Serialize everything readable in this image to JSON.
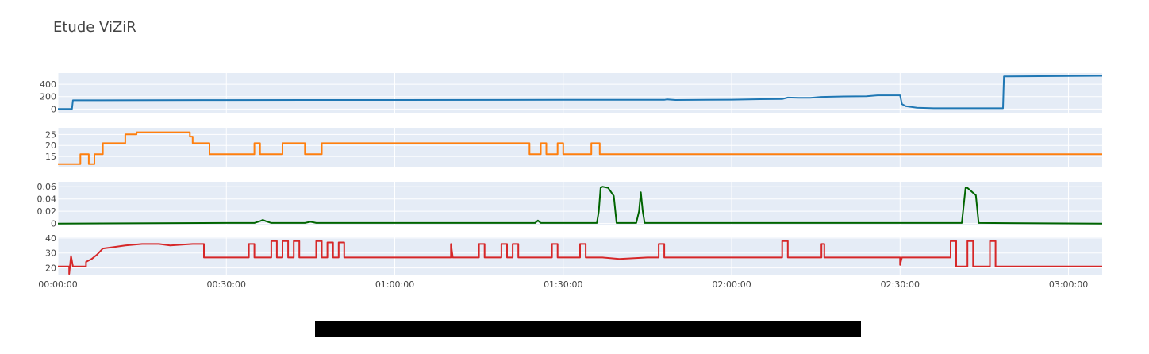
{
  "chart_data": {
    "type": "line",
    "title": "Etude ViZiR",
    "x_unit": "hh:mm:ss",
    "x_range": [
      "00:00:00",
      "03:06:00"
    ],
    "x_ticks": [
      "00:00:00",
      "00:30:00",
      "01:00:00",
      "01:30:00",
      "02:00:00",
      "02:30:00",
      "03:00:00"
    ],
    "grid": true,
    "legend": "none",
    "subplots": [
      {
        "color": "#1f77b4",
        "ylim": [
          -60,
          580
        ],
        "y_ticks": [
          0,
          200,
          400
        ],
        "points": [
          [
            "00:00:00",
            0
          ],
          [
            "00:02:30",
            0
          ],
          [
            "00:02:40",
            140
          ],
          [
            "00:30:00",
            143
          ],
          [
            "01:00:00",
            145
          ],
          [
            "01:30:00",
            147
          ],
          [
            "01:48:00",
            148
          ],
          [
            "01:48:30",
            155
          ],
          [
            "01:50:00",
            145
          ],
          [
            "02:00:00",
            150
          ],
          [
            "02:05:00",
            158
          ],
          [
            "02:09:00",
            160
          ],
          [
            "02:10:00",
            185
          ],
          [
            "02:12:00",
            180
          ],
          [
            "02:14:00",
            180
          ],
          [
            "02:16:00",
            195
          ],
          [
            "02:20:00",
            202
          ],
          [
            "02:24:00",
            205
          ],
          [
            "02:26:00",
            220
          ],
          [
            "02:30:00",
            220
          ],
          [
            "02:30:20",
            80
          ],
          [
            "02:31:00",
            45
          ],
          [
            "02:33:00",
            20
          ],
          [
            "02:36:00",
            12
          ],
          [
            "02:45:00",
            12
          ],
          [
            "02:48:20",
            12
          ],
          [
            "02:48:30",
            525
          ],
          [
            "03:06:00",
            535
          ]
        ]
      },
      {
        "color": "#ff7f0e",
        "ylim": [
          10,
          28
        ],
        "y_ticks": [
          15,
          20,
          25
        ],
        "points": [
          [
            "00:00:00",
            11.5
          ],
          [
            "00:04:00",
            11.5
          ],
          [
            "00:04:00",
            16
          ],
          [
            "00:05:30",
            16
          ],
          [
            "00:05:30",
            11.5
          ],
          [
            "00:06:30",
            11.5
          ],
          [
            "00:06:30",
            16
          ],
          [
            "00:08:00",
            16
          ],
          [
            "00:08:00",
            21
          ],
          [
            "00:12:00",
            21
          ],
          [
            "00:12:00",
            25
          ],
          [
            "00:14:00",
            25
          ],
          [
            "00:14:00",
            26
          ],
          [
            "00:23:30",
            26
          ],
          [
            "00:23:30",
            24
          ],
          [
            "00:24:00",
            24
          ],
          [
            "00:24:00",
            21
          ],
          [
            "00:27:00",
            21
          ],
          [
            "00:27:00",
            16
          ],
          [
            "00:35:00",
            16
          ],
          [
            "00:35:00",
            21
          ],
          [
            "00:36:00",
            21
          ],
          [
            "00:36:00",
            16
          ],
          [
            "00:40:00",
            16
          ],
          [
            "00:40:00",
            21
          ],
          [
            "00:44:00",
            21
          ],
          [
            "00:44:00",
            16
          ],
          [
            "00:47:00",
            16
          ],
          [
            "00:47:00",
            21
          ],
          [
            "01:24:00",
            21
          ],
          [
            "01:24:00",
            16
          ],
          [
            "01:26:00",
            16
          ],
          [
            "01:26:00",
            21
          ],
          [
            "01:27:00",
            21
          ],
          [
            "01:27:00",
            16
          ],
          [
            "01:29:00",
            16
          ],
          [
            "01:29:00",
            21
          ],
          [
            "01:30:00",
            21
          ],
          [
            "01:30:00",
            16
          ],
          [
            "01:35:00",
            16
          ],
          [
            "01:35:00",
            21
          ],
          [
            "01:36:30",
            21
          ],
          [
            "01:36:30",
            16
          ],
          [
            "03:06:00",
            16
          ]
        ]
      },
      {
        "color": "#006400",
        "ylim": [
          -0.003,
          0.068
        ],
        "y_ticks": [
          0,
          0.02,
          0.04,
          0.06
        ],
        "points": [
          [
            "00:00:00",
            0
          ],
          [
            "00:30:00",
            0.001
          ],
          [
            "00:35:00",
            0.001
          ],
          [
            "00:36:00",
            0.004
          ],
          [
            "00:36:30",
            0.006
          ],
          [
            "00:37:00",
            0.004
          ],
          [
            "00:38:00",
            0.001
          ],
          [
            "00:44:00",
            0.001
          ],
          [
            "00:45:00",
            0.003
          ],
          [
            "00:46:00",
            0.001
          ],
          [
            "01:00:00",
            0.001
          ],
          [
            "01:25:00",
            0.001
          ],
          [
            "01:25:30",
            0.005
          ],
          [
            "01:26:00",
            0.001
          ],
          [
            "01:36:00",
            0.001
          ],
          [
            "01:36:20",
            0.02
          ],
          [
            "01:36:40",
            0.058
          ],
          [
            "01:37:00",
            0.06
          ],
          [
            "01:38:00",
            0.058
          ],
          [
            "01:39:00",
            0.045
          ],
          [
            "01:39:30",
            0.001
          ],
          [
            "01:43:00",
            0.001
          ],
          [
            "01:43:30",
            0.02
          ],
          [
            "01:43:50",
            0.051
          ],
          [
            "01:44:10",
            0.02
          ],
          [
            "01:44:30",
            0.001
          ],
          [
            "02:40:00",
            0.001
          ],
          [
            "02:41:00",
            0.001
          ],
          [
            "02:41:20",
            0.03
          ],
          [
            "02:41:40",
            0.058
          ],
          [
            "02:42:00",
            0.058
          ],
          [
            "02:43:30",
            0.046
          ],
          [
            "02:44:00",
            0.001
          ],
          [
            "03:06:00",
            0
          ]
        ]
      },
      {
        "color": "#d62728",
        "ylim": [
          15,
          41
        ],
        "y_ticks": [
          20,
          30,
          40
        ],
        "points": [
          [
            "00:00:00",
            21
          ],
          [
            "00:02:00",
            21
          ],
          [
            "00:02:00",
            16
          ],
          [
            "00:02:20",
            28
          ],
          [
            "00:02:40",
            21
          ],
          [
            "00:05:00",
            21
          ],
          [
            "00:05:00",
            24
          ],
          [
            "00:06:00",
            26
          ],
          [
            "00:07:00",
            29
          ],
          [
            "00:08:00",
            33
          ],
          [
            "00:10:00",
            34
          ],
          [
            "00:12:00",
            35
          ],
          [
            "00:15:00",
            36
          ],
          [
            "00:18:00",
            36
          ],
          [
            "00:20:00",
            35
          ],
          [
            "00:24:00",
            36
          ],
          [
            "00:26:00",
            36
          ],
          [
            "00:26:00",
            27
          ],
          [
            "00:34:00",
            27
          ],
          [
            "00:34:00",
            36
          ],
          [
            "00:35:00",
            36
          ],
          [
            "00:35:00",
            27
          ],
          [
            "00:38:00",
            27
          ],
          [
            "00:38:00",
            38
          ],
          [
            "00:39:00",
            38
          ],
          [
            "00:39:00",
            27
          ],
          [
            "00:40:00",
            27
          ],
          [
            "00:40:00",
            38
          ],
          [
            "00:41:00",
            38
          ],
          [
            "00:41:00",
            27
          ],
          [
            "00:42:00",
            27
          ],
          [
            "00:42:00",
            38
          ],
          [
            "00:43:00",
            38
          ],
          [
            "00:43:00",
            27
          ],
          [
            "00:46:00",
            27
          ],
          [
            "00:46:00",
            38
          ],
          [
            "00:47:00",
            38
          ],
          [
            "00:47:00",
            27
          ],
          [
            "00:48:00",
            27
          ],
          [
            "00:48:00",
            37
          ],
          [
            "00:49:00",
            37
          ],
          [
            "00:49:00",
            27
          ],
          [
            "00:50:00",
            27
          ],
          [
            "00:50:00",
            37
          ],
          [
            "00:51:00",
            37
          ],
          [
            "00:51:00",
            27
          ],
          [
            "01:10:00",
            27
          ],
          [
            "01:10:00",
            36
          ],
          [
            "01:10:20",
            27
          ],
          [
            "01:15:00",
            27
          ],
          [
            "01:15:00",
            36
          ],
          [
            "01:16:00",
            36
          ],
          [
            "01:16:00",
            27
          ],
          [
            "01:19:00",
            27
          ],
          [
            "01:19:00",
            36
          ],
          [
            "01:20:00",
            36
          ],
          [
            "01:20:00",
            27
          ],
          [
            "01:21:00",
            27
          ],
          [
            "01:21:00",
            36
          ],
          [
            "01:22:00",
            36
          ],
          [
            "01:22:00",
            27
          ],
          [
            "01:28:00",
            27
          ],
          [
            "01:28:00",
            36
          ],
          [
            "01:29:00",
            36
          ],
          [
            "01:29:00",
            27
          ],
          [
            "01:33:00",
            27
          ],
          [
            "01:33:00",
            36
          ],
          [
            "01:34:00",
            36
          ],
          [
            "01:34:00",
            27
          ],
          [
            "01:37:00",
            27
          ],
          [
            "01:40:00",
            26
          ],
          [
            "01:45:00",
            27
          ],
          [
            "01:47:00",
            27
          ],
          [
            "01:47:00",
            36
          ],
          [
            "01:48:00",
            36
          ],
          [
            "01:48:00",
            27
          ],
          [
            "02:09:00",
            27
          ],
          [
            "02:09:00",
            38
          ],
          [
            "02:10:00",
            38
          ],
          [
            "02:10:00",
            27
          ],
          [
            "02:16:00",
            27
          ],
          [
            "02:16:00",
            36
          ],
          [
            "02:16:30",
            36
          ],
          [
            "02:16:30",
            27
          ],
          [
            "02:29:00",
            27
          ],
          [
            "02:30:00",
            27
          ],
          [
            "02:30:00",
            22
          ],
          [
            "02:30:20",
            27
          ],
          [
            "02:39:00",
            27
          ],
          [
            "02:39:00",
            38
          ],
          [
            "02:40:00",
            38
          ],
          [
            "02:40:00",
            21
          ],
          [
            "02:42:00",
            21
          ],
          [
            "02:42:00",
            38
          ],
          [
            "02:43:00",
            38
          ],
          [
            "02:43:00",
            21
          ],
          [
            "02:46:00",
            21
          ],
          [
            "02:46:00",
            38
          ],
          [
            "02:47:00",
            38
          ],
          [
            "02:47:00",
            21
          ],
          [
            "03:06:00",
            21
          ]
        ]
      }
    ]
  }
}
